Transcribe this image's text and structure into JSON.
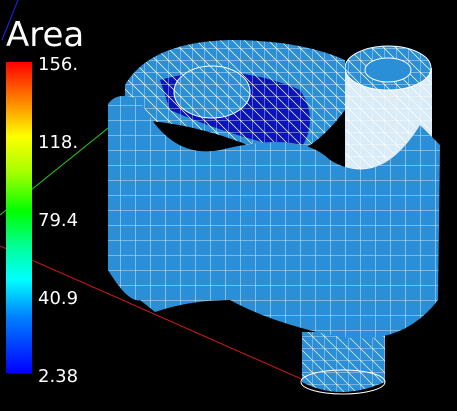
{
  "legend": {
    "title": "Area",
    "ticks": [
      "156.",
      "118.",
      "79.4",
      "40.9",
      "2.38"
    ]
  },
  "colors": {
    "background": "#000000",
    "surface": "#2a8fd6",
    "mesh": "#ffffff",
    "dark_patch": "#0a14b8",
    "x_axis": "#cc1a1a",
    "y_axis": "#22cc22",
    "z_axis": "#2222ff"
  }
}
